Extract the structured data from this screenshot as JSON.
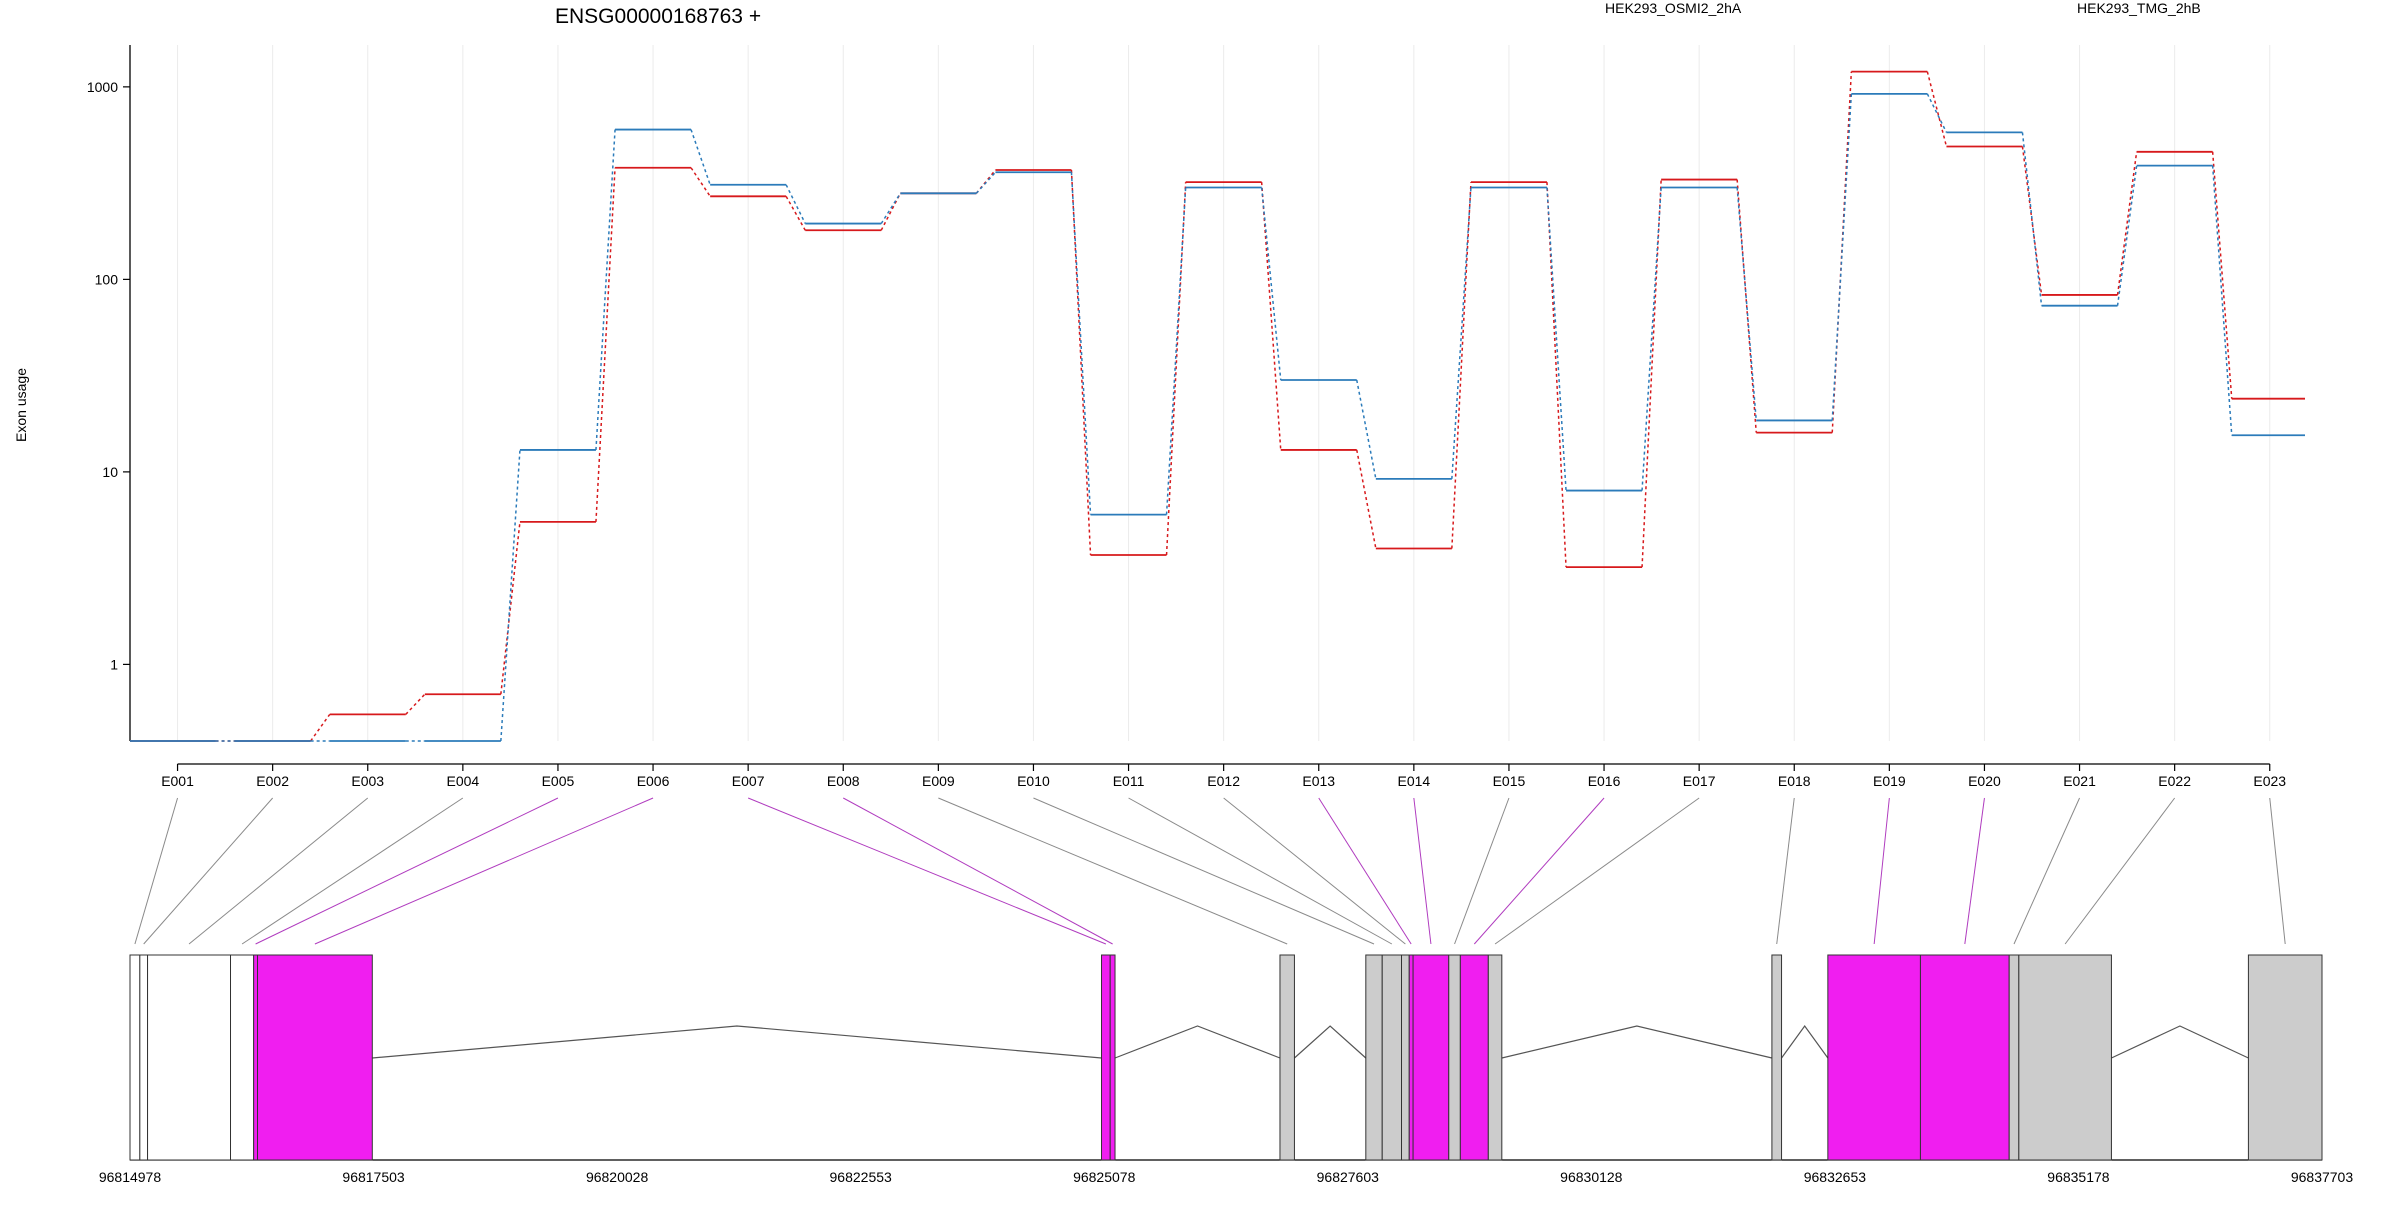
{
  "chart_data": {
    "type": "line",
    "title": "ENSG00000168763 +",
    "ylabel": "Exon usage",
    "xlabel": "",
    "y_scale": "log",
    "ylim": [
      0.4,
      1650
    ],
    "y_ticks": [
      1,
      10,
      100,
      1000
    ],
    "y_tick_labels": [
      "1",
      "10",
      "100",
      "1000"
    ],
    "grid": "vertical",
    "legend_position": "top",
    "categories": [
      "E001",
      "E002",
      "E003",
      "E004",
      "E005",
      "E006",
      "E007",
      "E008",
      "E009",
      "E010",
      "E011",
      "E012",
      "E013",
      "E014",
      "E015",
      "E016",
      "E017",
      "E018",
      "E019",
      "E020",
      "E021",
      "E022",
      "E023"
    ],
    "series": [
      {
        "name": "HEK293_OSMI2_2hA",
        "color": "#d7191c",
        "values": [
          0.4,
          0.4,
          0.55,
          0.7,
          5.5,
          380,
          270,
          180,
          280,
          370,
          3.7,
          320,
          13,
          4,
          320,
          3.2,
          330,
          16,
          1200,
          490,
          83,
          460,
          24
        ]
      },
      {
        "name": "HEK293_TMG_2hB",
        "color": "#2b7bba",
        "values": [
          0.4,
          0.4,
          0.4,
          0.4,
          13,
          600,
          310,
          195,
          280,
          360,
          6,
          300,
          30,
          9.2,
          300,
          8,
          300,
          18.5,
          920,
          580,
          73,
          390,
          15.5
        ]
      }
    ],
    "gene_model": {
      "x_ticks": [
        96814978,
        96817503,
        96820028,
        96822553,
        96825078,
        96827603,
        96830128,
        96832653,
        96835178,
        96837703
      ],
      "x_tick_labels": [
        "96814978",
        "96817503",
        "96820028",
        "96822553",
        "96825078",
        "96827603",
        "96830128",
        "96832653",
        "96835178",
        "96837703"
      ],
      "xlim": [
        96814978,
        96837703
      ],
      "highlight_color": "#f01ef0",
      "default_color": "#cccccc",
      "exons": [
        {
          "id": "E001",
          "start": 96814978,
          "end": 96815080,
          "fill": "white",
          "h": false
        },
        {
          "id": "E002",
          "start": 96815080,
          "end": 96815160,
          "fill": "white",
          "h": false
        },
        {
          "id": "E003",
          "start": 96815160,
          "end": 96816020,
          "fill": "white",
          "h": false
        },
        {
          "id": "E004",
          "start": 96816020,
          "end": 96816260,
          "fill": "white",
          "h": false
        },
        {
          "id": "E005",
          "start": 96816260,
          "end": 96816300,
          "fill": "hl",
          "h": true
        },
        {
          "id": "E006",
          "start": 96816300,
          "end": 96817490,
          "fill": "hl",
          "h": true
        },
        {
          "id": "E007",
          "start": 96825050,
          "end": 96825140,
          "fill": "hl",
          "h": true
        },
        {
          "id": "E008",
          "start": 96825140,
          "end": 96825190,
          "fill": "hl",
          "h": true
        },
        {
          "id": "E009",
          "start": 96826900,
          "end": 96827050,
          "fill": "gray",
          "h": false
        },
        {
          "id": "E010",
          "start": 96827790,
          "end": 96827960,
          "fill": "gray",
          "h": false
        },
        {
          "id": "E011",
          "start": 96827960,
          "end": 96828160,
          "fill": "gray",
          "h": false
        },
        {
          "id": "E012",
          "start": 96828160,
          "end": 96828240,
          "fill": "gray",
          "h": false
        },
        {
          "id": "E013",
          "start": 96828240,
          "end": 96828280,
          "fill": "hl",
          "h": true
        },
        {
          "id": "E014",
          "start": 96828280,
          "end": 96828650,
          "fill": "hl",
          "h": true
        },
        {
          "id": "E015",
          "start": 96828650,
          "end": 96828770,
          "fill": "gray",
          "h": false
        },
        {
          "id": "E016",
          "start": 96828770,
          "end": 96829060,
          "fill": "hl",
          "h": true
        },
        {
          "id": "E017",
          "start": 96829060,
          "end": 96829200,
          "fill": "gray",
          "h": false
        },
        {
          "id": "E018",
          "start": 96832000,
          "end": 96832100,
          "fill": "gray",
          "h": false
        },
        {
          "id": "E019",
          "start": 96832580,
          "end": 96833540,
          "fill": "hl",
          "h": true
        },
        {
          "id": "E020",
          "start": 96833540,
          "end": 96834460,
          "fill": "hl",
          "h": true
        },
        {
          "id": "E021",
          "start": 96834460,
          "end": 96834560,
          "fill": "gray",
          "h": false
        },
        {
          "id": "E022",
          "start": 96834560,
          "end": 96835520,
          "fill": "gray",
          "h": false
        },
        {
          "id": "E023",
          "start": 96836940,
          "end": 96837703,
          "fill": "gray",
          "h": false
        }
      ],
      "introns": [
        [
          96817490,
          96825050
        ],
        [
          96825190,
          96826900
        ],
        [
          96827050,
          96827790
        ],
        [
          96829200,
          96832000
        ],
        [
          96832100,
          96832580
        ],
        [
          96835520,
          96836940
        ]
      ]
    }
  }
}
